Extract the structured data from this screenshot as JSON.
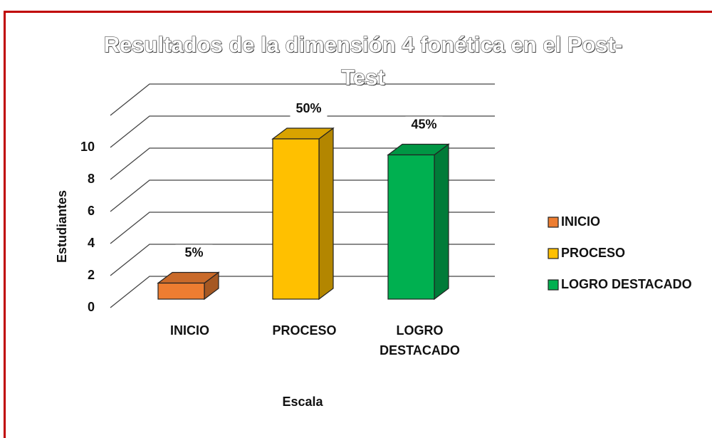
{
  "chart_data": {
    "type": "bar3d",
    "title": "Resultados de la dimensión 4 fonética en el Post-Test",
    "x_label": "Escala",
    "y_label": "Estudiantes",
    "categories": [
      "INICIO",
      "PROCESO",
      "LOGRO DESTACADO"
    ],
    "values": [
      1,
      10,
      9
    ],
    "value_labels": [
      "5%",
      "50%",
      "45%"
    ],
    "colors": [
      "#ED7D31",
      "#FFC000",
      "#00B050"
    ],
    "ylim": [
      0,
      10
    ],
    "yticks": [
      0,
      2,
      4,
      6,
      8,
      10
    ],
    "grid": true,
    "legend": "right"
  }
}
